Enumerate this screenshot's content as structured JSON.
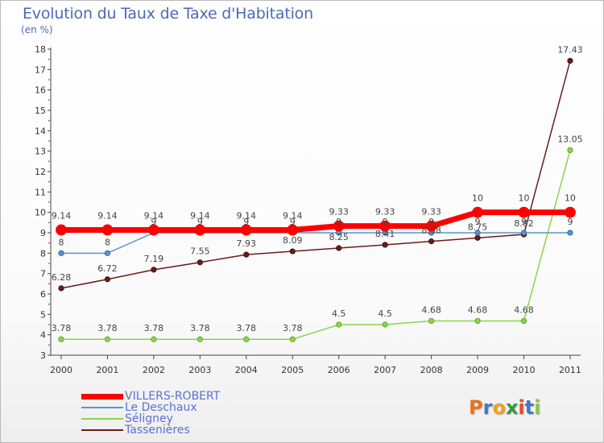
{
  "header": {
    "title": "Evolution du Taux de Taxe d'Habitation",
    "unit": "(en %)"
  },
  "logo": {
    "letters": [
      {
        "ch": "P",
        "color": "#e8741c"
      },
      {
        "ch": "r",
        "color": "#3d7bc4"
      },
      {
        "ch": "o",
        "color": "#f0a020"
      },
      {
        "ch": "x",
        "color": "#2f9a3e"
      },
      {
        "ch": "i",
        "color": "#e84828"
      },
      {
        "ch": "t",
        "color": "#3d7bc4"
      },
      {
        "ch": "i",
        "color": "#8cc63f"
      }
    ]
  },
  "chart_data": {
    "type": "line",
    "title": "Evolution du Taux de Taxe d'Habitation",
    "ylabel": "(en %)",
    "xlabel": "",
    "x": [
      "2000",
      "2001",
      "2002",
      "2003",
      "2004",
      "2005",
      "2006",
      "2007",
      "2008",
      "2009",
      "2010",
      "2011"
    ],
    "ylim": [
      3,
      18
    ],
    "yticks": [
      3,
      4,
      5,
      6,
      7,
      8,
      9,
      10,
      11,
      12,
      13,
      14,
      15,
      16,
      17,
      18
    ],
    "grid": false,
    "legend_position": "bottom-left",
    "series": [
      {
        "name": "VILLERS-ROBERT",
        "color": "#ff0000",
        "values": [
          9.14,
          9.14,
          9.14,
          9.14,
          9.14,
          9.14,
          9.33,
          9.33,
          9.33,
          10,
          10,
          10
        ],
        "labels": [
          "9.14",
          "9.14",
          "9.14",
          "9.14",
          "9.14",
          "9.14",
          "9.33",
          "9.33",
          "9.33",
          "10",
          "10",
          "10"
        ]
      },
      {
        "name": "Le Deschaux",
        "color": "#5b93cc",
        "values": [
          8,
          8,
          9,
          9,
          9,
          9,
          9,
          9,
          9,
          9,
          9,
          9
        ],
        "labels": [
          "8",
          "8",
          "9",
          "9",
          "9",
          "9",
          "9",
          "9",
          "9",
          "9",
          "9",
          "9"
        ]
      },
      {
        "name": "Séligney",
        "color": "#8cd44a",
        "values": [
          3.78,
          3.78,
          3.78,
          3.78,
          3.78,
          3.78,
          4.5,
          4.5,
          4.68,
          4.68,
          4.68,
          13.05
        ],
        "labels": [
          "3.78",
          "3.78",
          "3.78",
          "3.78",
          "3.78",
          "3.78",
          "4.5",
          "4.5",
          "4.68",
          "4.68",
          "4.68",
          "13.05"
        ]
      },
      {
        "name": "Tassenières",
        "color": "#6b1c1c",
        "values": [
          6.28,
          6.72,
          7.19,
          7.55,
          7.93,
          8.09,
          8.25,
          8.41,
          8.58,
          8.75,
          8.92,
          17.43
        ],
        "labels": [
          "6.28",
          "6.72",
          "7.19",
          "7.55",
          "7.93",
          "8.09",
          "8.25",
          "8.41",
          "8.58",
          "8.75",
          "8.92",
          "17.43"
        ]
      }
    ]
  }
}
